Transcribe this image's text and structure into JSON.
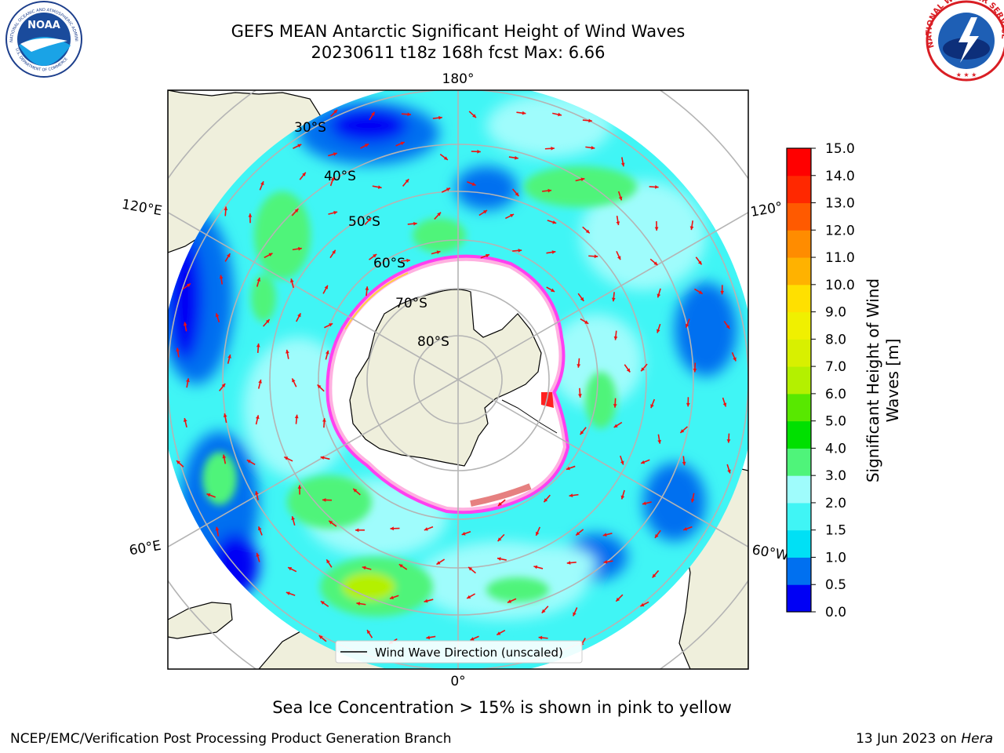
{
  "title": {
    "line1": "GEFS MEAN Antarctic Significant Height of Wind Waves",
    "line2": "20230611 t18z 168h fcst   Max: 6.66"
  },
  "logos": {
    "noaa_text": "NOAA",
    "noaa_ring_text": "NATIONAL OCEANIC AND ATMOSPHERIC ADMINISTRATION",
    "noaa_bottom_text": "U.S. DEPARTMENT OF COMMERCE",
    "nws_ring_text": "NATIONAL WEATHER SERVICE"
  },
  "map": {
    "projection": "south-polar-stereographic",
    "meridian_labels": {
      "top": "180°",
      "bottom": "0°",
      "upper_left": "120°E",
      "lower_left": "60°E",
      "upper_right": "120°",
      "lower_right": "60°W"
    },
    "latitude_labels": [
      "30°S",
      "40°S",
      "50°S",
      "60°S",
      "70°S",
      "80°S"
    ],
    "legend_label": "Wind Wave Direction (unscaled)"
  },
  "colorbar": {
    "title_line1": "Significant Height of Wind",
    "title_line2": "Waves [m]",
    "ticks": [
      "0.0",
      "0.5",
      "1.0",
      "1.5",
      "2.0",
      "3.0",
      "4.0",
      "5.0",
      "6.0",
      "7.0",
      "8.0",
      "9.0",
      "10.0",
      "11.0",
      "12.0",
      "13.0",
      "14.0",
      "15.0"
    ],
    "colors": [
      "#0000f5",
      "#0070f0",
      "#00e0f5",
      "#40f5f5",
      "#9ffcfc",
      "#4ff47a",
      "#00e000",
      "#58e800",
      "#b4f000",
      "#d8f000",
      "#f0f000",
      "#ffe000",
      "#ffb200",
      "#ff8c00",
      "#ff5a00",
      "#ff2800",
      "#ff0000"
    ]
  },
  "bottom_note": "Sea Ice Concentration > 15% is shown in pink to yellow",
  "footer": {
    "left": "NCEP/EMC/Verification Post Processing Product Generation Branch",
    "right_prefix": "13 Jun 2023 on ",
    "right_machine": "Hera"
  }
}
